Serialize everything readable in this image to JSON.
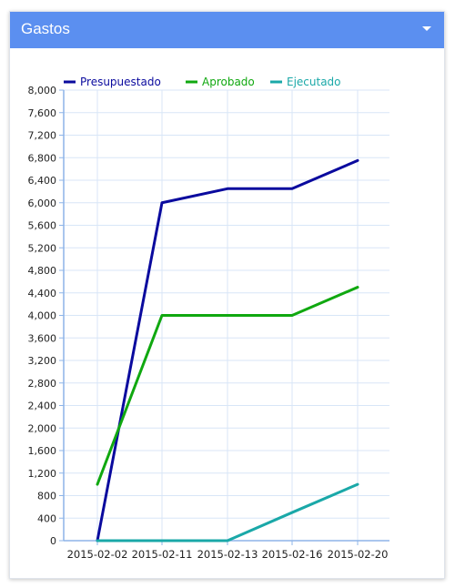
{
  "panel": {
    "title": "Gastos",
    "menu_icon": "caret-down-icon",
    "header_color": "#5b8ff0"
  },
  "chart_data": {
    "type": "line",
    "title": "",
    "xlabel": "",
    "ylabel": "",
    "x": [
      "2015-02-02",
      "2015-02-11",
      "2015-02-13",
      "2015-02-16",
      "2015-02-20"
    ],
    "x_tick_labels": [
      "2015-02-02",
      "2015-02-11",
      "2015-02-13",
      "2015-02-16",
      "2015-02-20"
    ],
    "ylim": [
      0,
      8000
    ],
    "y_ticks": [
      0,
      400,
      800,
      1200,
      1600,
      2000,
      2400,
      2800,
      3200,
      3600,
      4000,
      4400,
      4800,
      5200,
      5600,
      6000,
      6400,
      6800,
      7200,
      7600,
      8000
    ],
    "y_tick_labels": [
      "0",
      "400",
      "800",
      "1,200",
      "1,600",
      "2,000",
      "2,400",
      "2,800",
      "3,200",
      "3,600",
      "4,000",
      "4,400",
      "4,800",
      "5,200",
      "5,600",
      "6,000",
      "6,400",
      "6,800",
      "7,200",
      "7,600",
      "8,000"
    ],
    "grid": true,
    "legend_position": "top-left",
    "series": [
      {
        "name": "Presupuestado",
        "color": "#0a0a9e",
        "values": [
          0,
          6000,
          6250,
          6250,
          6750
        ]
      },
      {
        "name": "Aprobado",
        "color": "#10a810",
        "values": [
          1000,
          4000,
          4000,
          4000,
          4500
        ]
      },
      {
        "name": "Ejecutado",
        "color": "#1aa8a8",
        "values": [
          0,
          0,
          0,
          500,
          1000
        ]
      }
    ]
  }
}
